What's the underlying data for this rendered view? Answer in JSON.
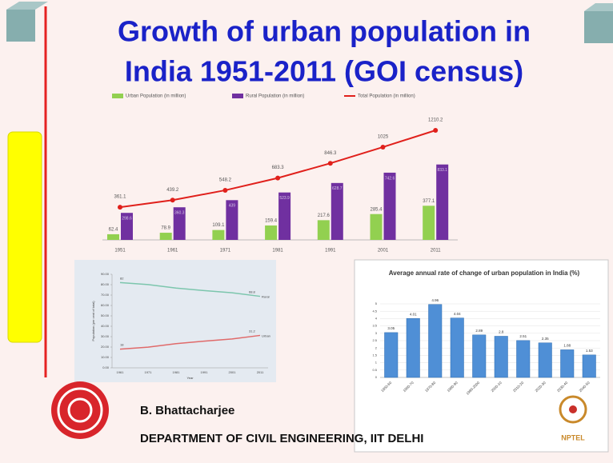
{
  "title_lines": [
    "Growth of urban population in",
    "India 1951-2011 (GOI census)"
  ],
  "author": "B. Bhattacharjee",
  "department": "DEPARTMENT OF CIVIL ENGINEERING, IIT DELHI",
  "logo_text": "NPTEL",
  "chart_data": [
    {
      "type": "combo",
      "categories": [
        "1951",
        "1961",
        "1971",
        "1981",
        "1991",
        "2001",
        "2011"
      ],
      "series": [
        {
          "name": "Urban Population (in million)",
          "color": "#92d050",
          "type": "bar",
          "values": [
            62.4,
            78.9,
            109.1,
            159.4,
            217.6,
            285.4,
            377.1
          ]
        },
        {
          "name": "Rural Population (in million)",
          "color": "#7030a0",
          "type": "bar",
          "values": [
            298.6,
            360.3,
            439.0,
            523.9,
            628.7,
            742.6,
            833.1
          ]
        },
        {
          "name": "Total Population (in million)",
          "color": "#e0201b",
          "type": "line",
          "values": [
            361.1,
            439.2,
            548.2,
            683.3,
            846.3,
            1025,
            1210.2
          ]
        }
      ]
    },
    {
      "type": "line",
      "categories": [
        "1961",
        "1971",
        "1981",
        "1991",
        "2001",
        "2011"
      ],
      "ylabel": "Population (per cent of total)",
      "xlabel": "Year",
      "ylim": [
        0,
        90
      ],
      "yticks": [
        {
          "value": 0,
          "label": "0.00"
        },
        {
          "value": 10,
          "label": "10.00"
        },
        {
          "value": 20,
          "label": "20.00"
        },
        {
          "value": 30,
          "label": "30.00"
        },
        {
          "value": 40,
          "label": "40.00"
        },
        {
          "value": 50,
          "label": "50.00"
        },
        {
          "value": 60,
          "label": "60.00"
        },
        {
          "value": 70,
          "label": "70.00"
        },
        {
          "value": 80,
          "label": "80.00"
        },
        {
          "value": 90,
          "label": "90.00"
        }
      ],
      "series": [
        {
          "name": "Rural",
          "color": "#7cc6ad",
          "values": [
            82.0,
            80.1,
            76.7,
            74.3,
            72.2,
            68.8
          ]
        },
        {
          "name": "Urban",
          "color": "#e06a6a",
          "values": [
            18.0,
            19.9,
            23.3,
            25.7,
            27.8,
            31.2
          ]
        }
      ]
    },
    {
      "type": "bar",
      "title": "Average annual rate of change of urban population in India (%)",
      "categories": [
        "1950-60",
        "1960-70",
        "1970-80",
        "1980-90",
        "1990-2000",
        "2000-10",
        "2010-20",
        "2020-30",
        "2030-40",
        "2040-50"
      ],
      "values": [
        3.05,
        4.01,
        4.96,
        4.04,
        2.89,
        2.8,
        2.51,
        2.35,
        1.88,
        1.53
      ],
      "color": "#4f8fd6",
      "ylim": [
        0,
        5
      ],
      "yticks": [
        0,
        0.5,
        1,
        1.5,
        2,
        2.5,
        3,
        3.5,
        4,
        4.5,
        5
      ],
      "grid": true
    }
  ]
}
